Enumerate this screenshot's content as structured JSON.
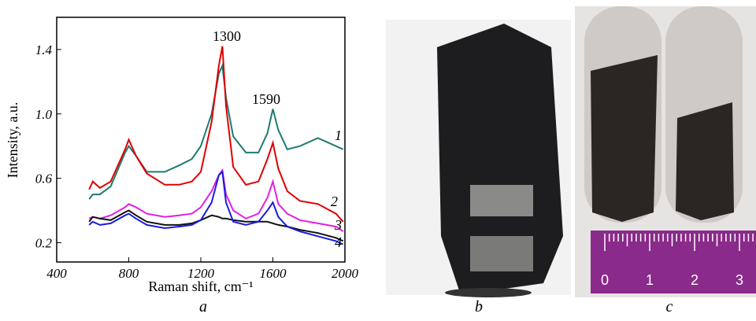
{
  "chart_data": {
    "type": "line",
    "x_label": "Raman shift, cm⁻¹",
    "y_label": "Intensity, a.u.",
    "panel_label": "a",
    "xlim": [
      400,
      2000
    ],
    "xticks": [
      400,
      800,
      1200,
      1600,
      2000
    ],
    "ylim": [
      0.08,
      1.6
    ],
    "yticks": [
      0.2,
      0.6,
      {
        "value": 1,
        "label": "1.0"
      },
      1.4
    ],
    "x": [
      580,
      600,
      640,
      700,
      780,
      800,
      840,
      900,
      1000,
      1080,
      1150,
      1200,
      1260,
      1300,
      1320,
      1340,
      1380,
      1450,
      1520,
      1570,
      1600,
      1630,
      1680,
      1750,
      1850,
      1950,
      1990
    ],
    "series": [
      {
        "color": "#1f7a70",
        "values": [
          0.47,
          0.5,
          0.5,
          0.55,
          0.76,
          0.8,
          0.74,
          0.64,
          0.64,
          0.68,
          0.72,
          0.8,
          1.0,
          1.25,
          1.3,
          1.1,
          0.86,
          0.76,
          0.76,
          0.88,
          1.03,
          0.9,
          0.78,
          0.8,
          0.85,
          0.8,
          0.78
        ]
      },
      {
        "color": "#e00000",
        "values": [
          0.53,
          0.58,
          0.54,
          0.58,
          0.78,
          0.84,
          0.74,
          0.63,
          0.56,
          0.56,
          0.58,
          0.64,
          0.95,
          1.3,
          1.42,
          1.05,
          0.67,
          0.56,
          0.58,
          0.72,
          0.82,
          0.66,
          0.52,
          0.46,
          0.44,
          0.38,
          0.33
        ]
      },
      {
        "color": "#e020e0",
        "values": [
          0.35,
          0.36,
          0.35,
          0.37,
          0.42,
          0.44,
          0.42,
          0.38,
          0.36,
          0.37,
          0.38,
          0.42,
          0.52,
          0.62,
          0.65,
          0.5,
          0.4,
          0.35,
          0.38,
          0.48,
          0.58,
          0.44,
          0.38,
          0.34,
          0.32,
          0.3,
          0.27
        ]
      },
      {
        "color": "#111111",
        "values": [
          0.33,
          0.36,
          0.35,
          0.34,
          0.39,
          0.4,
          0.37,
          0.33,
          0.31,
          0.31,
          0.32,
          0.34,
          0.37,
          0.36,
          0.35,
          0.35,
          0.34,
          0.33,
          0.33,
          0.33,
          0.32,
          0.31,
          0.3,
          0.28,
          0.26,
          0.23,
          0.21
        ]
      },
      {
        "color": "#1a1ae0",
        "values": [
          0.31,
          0.33,
          0.31,
          0.32,
          0.37,
          0.38,
          0.35,
          0.31,
          0.29,
          0.3,
          0.31,
          0.34,
          0.45,
          0.62,
          0.64,
          0.45,
          0.33,
          0.31,
          0.33,
          0.4,
          0.45,
          0.36,
          0.3,
          0.27,
          0.24,
          0.21,
          0.19
        ]
      }
    ],
    "annotations": [
      "1300",
      "1590",
      "1",
      "2",
      "3",
      "4"
    ]
  },
  "photos": [
    {
      "label": "b"
    },
    {
      "label": "c",
      "ruler_labels": [
        "0",
        "1",
        "2",
        "3"
      ]
    }
  ]
}
